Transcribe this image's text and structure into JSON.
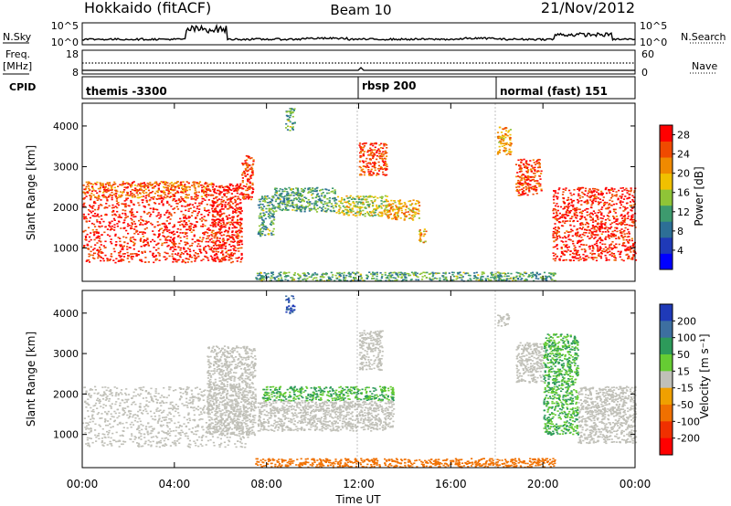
{
  "header": {
    "station": "Hokkaido (fitACF)",
    "beam": "Beam 10",
    "date": "21/Nov/2012"
  },
  "nsky_panel": {
    "left_label": "N.Sky",
    "left_ticks": [
      "10^5",
      "10^0"
    ],
    "right_ticks": [
      "10^5",
      "10^0"
    ],
    "right_label": "N.Search"
  },
  "freq_panel": {
    "left_label_1": "Freq.",
    "left_label_2": "[MHz]",
    "left_ticks": [
      "18",
      "8"
    ],
    "right_ticks": [
      "60",
      "0"
    ],
    "right_label": "Nave"
  },
  "cpid_panel": {
    "label": "CPID",
    "modes": [
      {
        "name": "themis -3300",
        "start_hour": 0
      },
      {
        "name": "rbsp 200",
        "start_hour": 12
      },
      {
        "name": "normal (fast) 151",
        "start_hour": 18
      }
    ]
  },
  "chart_data": [
    {
      "type": "heatmap",
      "panel": "power",
      "ylabel": "Slant Range [km]",
      "ylim": [
        180,
        4560
      ],
      "yticks": [
        1000,
        2000,
        3000,
        4000
      ],
      "xlim_hours": [
        0,
        24
      ],
      "xticks": [
        "00:00",
        "04:00",
        "08:00",
        "12:00",
        "16:00",
        "20:00",
        "00:00"
      ],
      "xtick_hours": [
        0,
        4,
        8,
        12,
        16,
        20,
        24
      ],
      "colorbar": {
        "label": "Power [dB]",
        "ticks": [
          4,
          8,
          12,
          16,
          20,
          24,
          28
        ],
        "range": [
          0,
          30
        ],
        "colors": [
          "#0000ff",
          "#1f3ab8",
          "#2d6f96",
          "#3d9a6e",
          "#8fc437",
          "#f0c000",
          "#f08a00",
          "#f04a00",
          "#ff0000"
        ]
      },
      "scatter_regions": [
        {
          "t0": 0.0,
          "t1": 5.6,
          "r0": 650,
          "r1": 2250,
          "value": 28
        },
        {
          "t0": 0.0,
          "t1": 5.6,
          "r0": 2250,
          "r1": 2650,
          "value": 24
        },
        {
          "t0": 5.6,
          "t1": 6.9,
          "r0": 650,
          "r1": 2600,
          "value": 28
        },
        {
          "t0": 6.9,
          "t1": 7.4,
          "r0": 2200,
          "r1": 3300,
          "value": 26
        },
        {
          "t0": 7.6,
          "t1": 8.3,
          "r0": 1300,
          "r1": 2300,
          "value": 12
        },
        {
          "t0": 8.3,
          "t1": 11.0,
          "r0": 1900,
          "r1": 2500,
          "value": 12
        },
        {
          "t0": 11.0,
          "t1": 13.2,
          "r0": 1800,
          "r1": 2300,
          "value": 16
        },
        {
          "t0": 12.0,
          "t1": 13.2,
          "r0": 2800,
          "r1": 3600,
          "value": 26
        },
        {
          "t0": 13.2,
          "t1": 14.6,
          "r0": 1700,
          "r1": 2200,
          "value": 20
        },
        {
          "t0": 14.6,
          "t1": 14.9,
          "r0": 1100,
          "r1": 1500,
          "value": 20
        },
        {
          "t0": 8.8,
          "t1": 9.2,
          "r0": 3900,
          "r1": 4450,
          "value": 12
        },
        {
          "t0": 18.0,
          "t1": 18.6,
          "r0": 3300,
          "r1": 4000,
          "value": 20
        },
        {
          "t0": 18.8,
          "t1": 19.9,
          "r0": 2300,
          "r1": 3200,
          "value": 26
        },
        {
          "t0": 20.4,
          "t1": 24.0,
          "r0": 700,
          "r1": 2500,
          "value": 28
        },
        {
          "t0": 7.5,
          "t1": 20.5,
          "r0": 200,
          "r1": 420,
          "value": 12
        }
      ]
    },
    {
      "type": "heatmap",
      "panel": "velocity",
      "ylabel": "Slant Range [km]",
      "ylim": [
        180,
        4560
      ],
      "yticks": [
        1000,
        2000,
        3000,
        4000
      ],
      "xlim_hours": [
        0,
        24
      ],
      "xlabel": "Time UT",
      "colorbar": {
        "label": "Velocity [m s⁻¹]",
        "ticks": [
          "200",
          "100",
          "50",
          "15",
          "-15",
          "-50",
          "-100",
          "-200"
        ],
        "colors": [
          "#1f3ab8",
          "#3d6fa0",
          "#2d9a5a",
          "#66cc33",
          "#c0c0b8",
          "#f0a000",
          "#f07000",
          "#f03000",
          "#ff0000"
        ]
      },
      "scatter_regions": [
        {
          "t0": 0.0,
          "t1": 7.2,
          "r0": 700,
          "r1": 2200,
          "value": 0
        },
        {
          "t0": 5.4,
          "t1": 7.5,
          "r0": 1000,
          "r1": 3200,
          "value": 0
        },
        {
          "t0": 7.6,
          "t1": 13.5,
          "r0": 1100,
          "r1": 1850,
          "value": 0
        },
        {
          "t0": 7.8,
          "t1": 13.5,
          "r0": 1850,
          "r1": 2200,
          "value": 30
        },
        {
          "t0": 8.8,
          "t1": 9.2,
          "r0": 4000,
          "r1": 4450,
          "value": 150
        },
        {
          "t0": 12.0,
          "t1": 13.0,
          "r0": 2600,
          "r1": 3600,
          "value": 0
        },
        {
          "t0": 18.0,
          "t1": 18.5,
          "r0": 3700,
          "r1": 4000,
          "value": 0
        },
        {
          "t0": 18.8,
          "t1": 20.0,
          "r0": 2300,
          "r1": 3300,
          "value": 0
        },
        {
          "t0": 20.0,
          "t1": 21.5,
          "r0": 1000,
          "r1": 3500,
          "value": 30
        },
        {
          "t0": 21.5,
          "t1": 24.0,
          "r0": 800,
          "r1": 2200,
          "value": 0
        },
        {
          "t0": 7.5,
          "t1": 20.5,
          "r0": 200,
          "r1": 420,
          "value": -60
        }
      ]
    }
  ]
}
